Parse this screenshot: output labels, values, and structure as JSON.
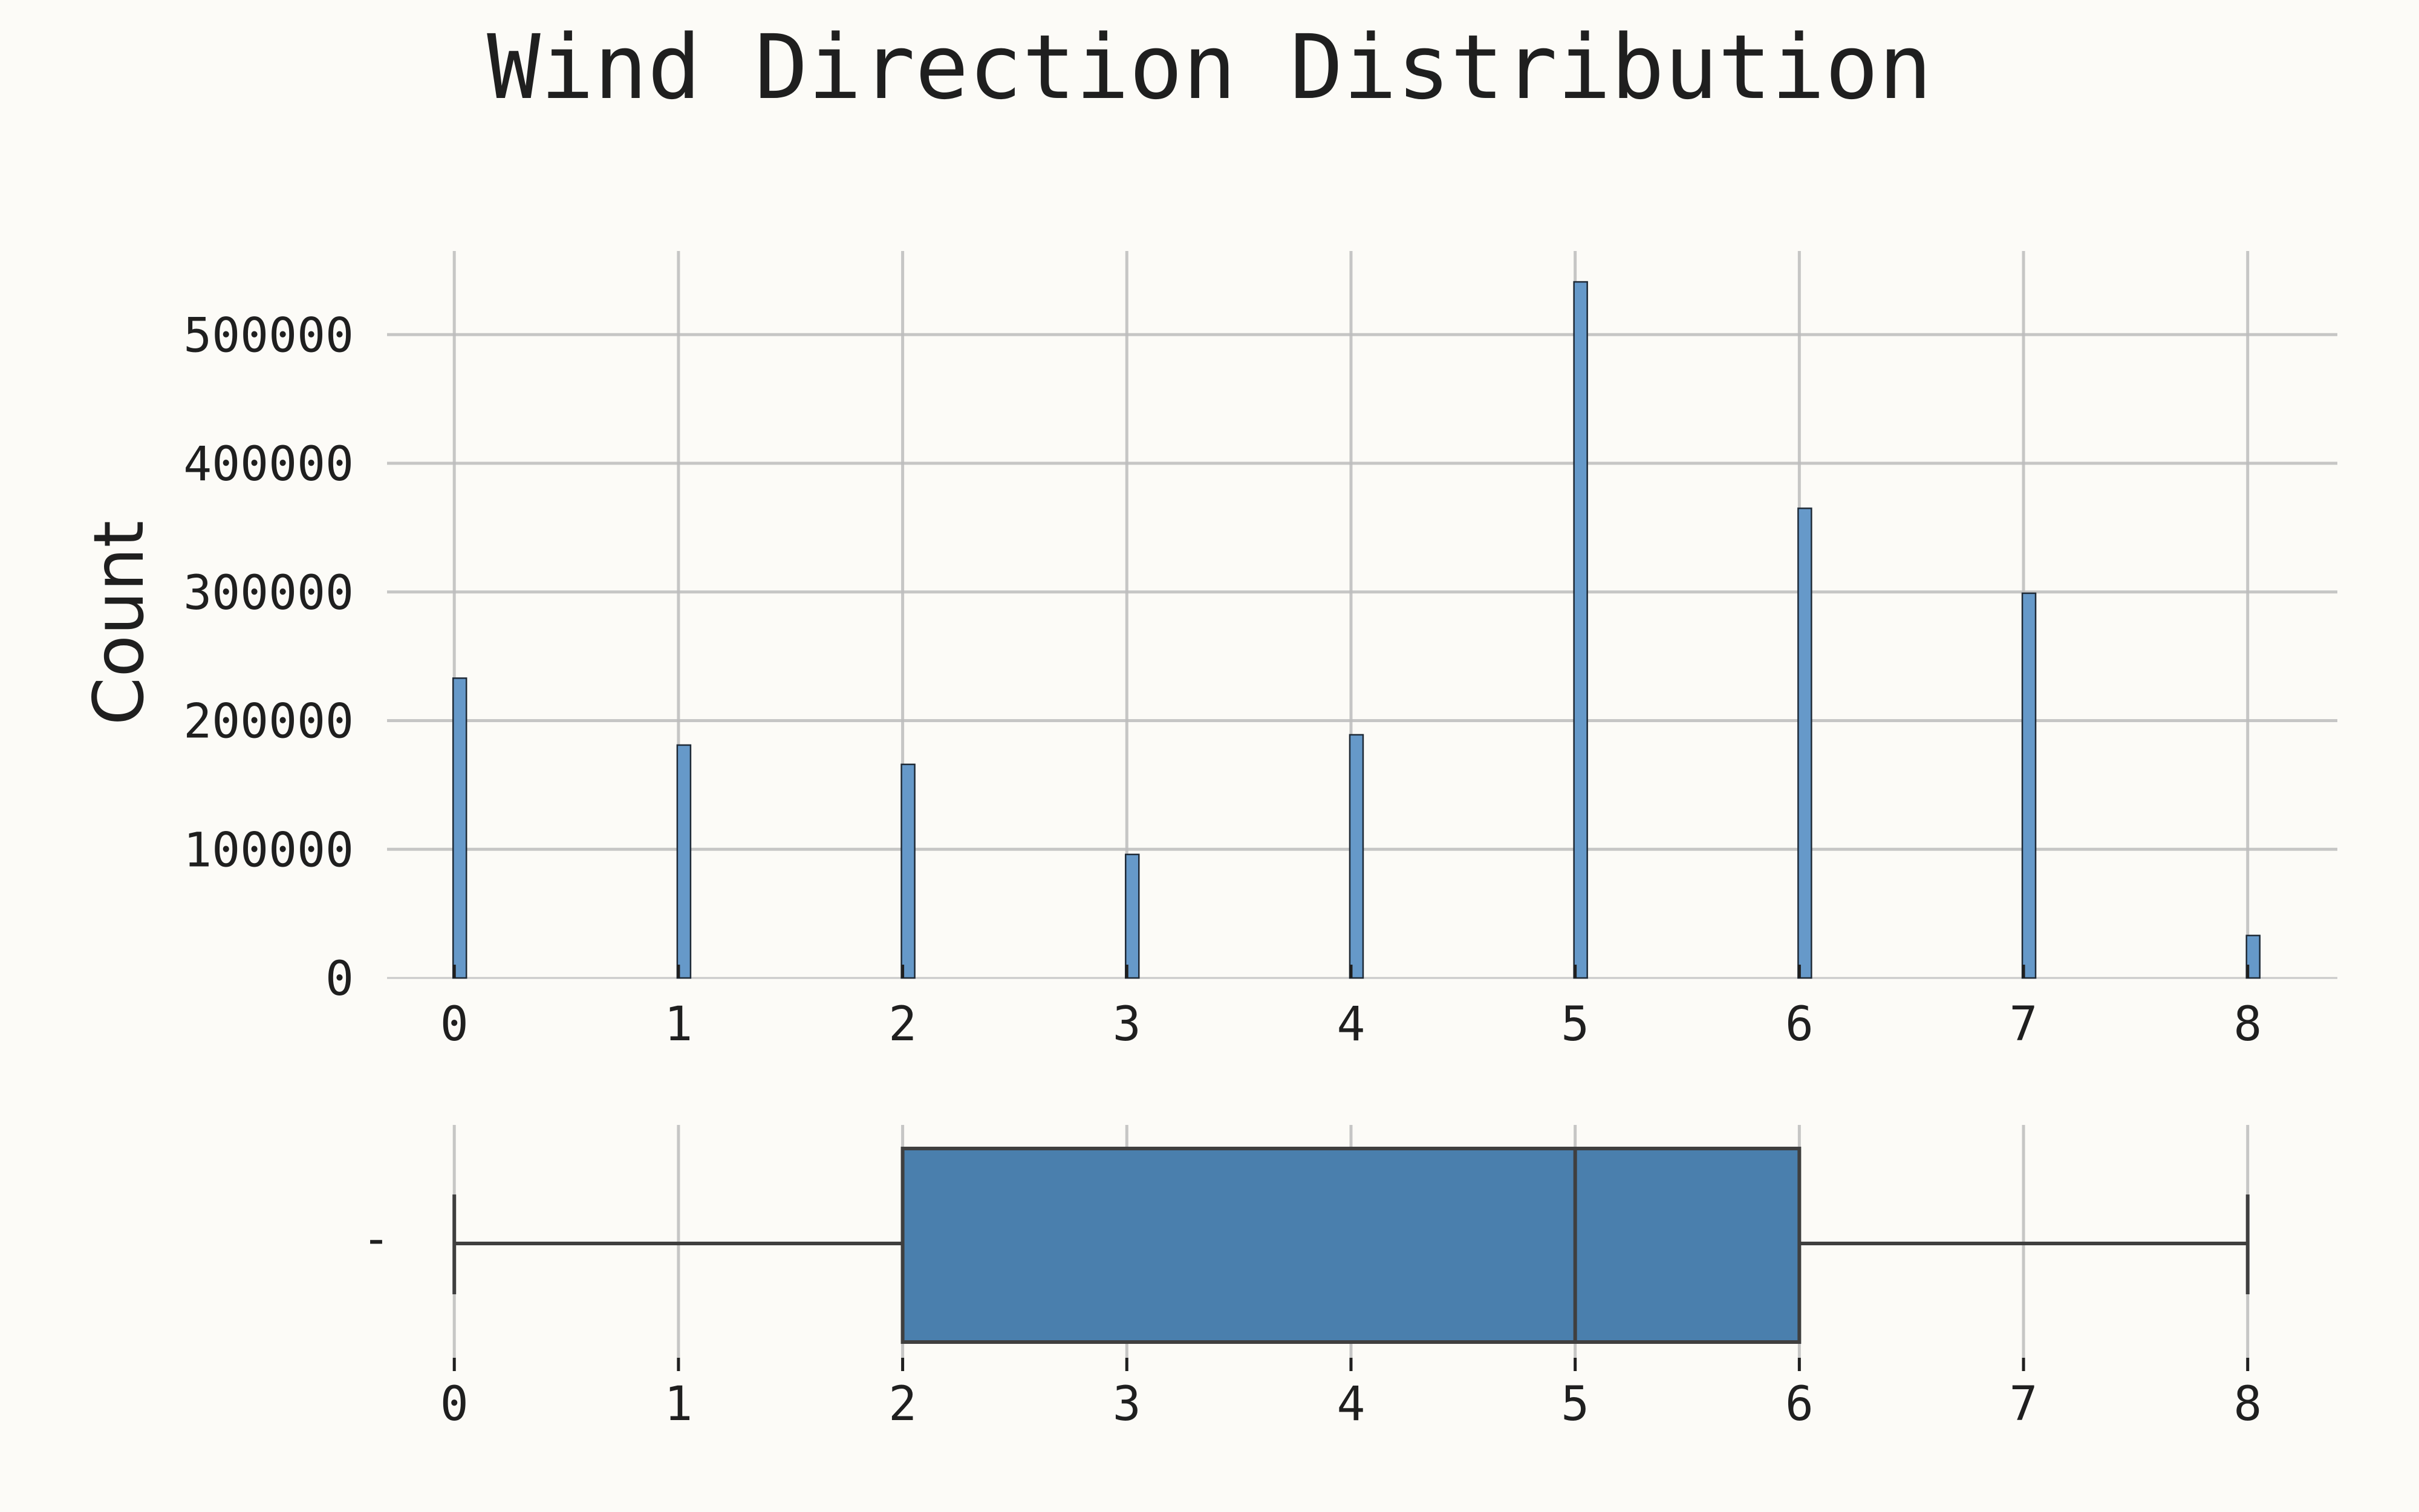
{
  "chart_data": [
    {
      "type": "bar",
      "title": "Wind Direction Distribution",
      "xlabel": "",
      "ylabel": "Count",
      "x": [
        0,
        1,
        2,
        3,
        4,
        5,
        6,
        7,
        8
      ],
      "values": [
        233000,
        181000,
        166000,
        96000,
        189000,
        541000,
        365000,
        299000,
        33000
      ],
      "xlim": [
        -0.3,
        8.4
      ],
      "ylim": [
        0,
        565000
      ],
      "xticks": [
        0,
        1,
        2,
        3,
        4,
        5,
        6,
        7,
        8
      ],
      "yticks": [
        0,
        100000,
        200000,
        300000,
        400000,
        500000
      ],
      "grid": true,
      "bar_color": "#6699c9"
    },
    {
      "type": "box",
      "xlabel": "",
      "ylabel": "",
      "ytick_label": "-",
      "min": 0,
      "q1": 2,
      "median": 5,
      "q3": 6,
      "max": 8,
      "xlim": [
        -0.3,
        8.4
      ],
      "xticks": [
        0,
        1,
        2,
        3,
        4,
        5,
        6,
        7,
        8
      ],
      "grid": true,
      "box_color": "#4a7fad"
    }
  ]
}
